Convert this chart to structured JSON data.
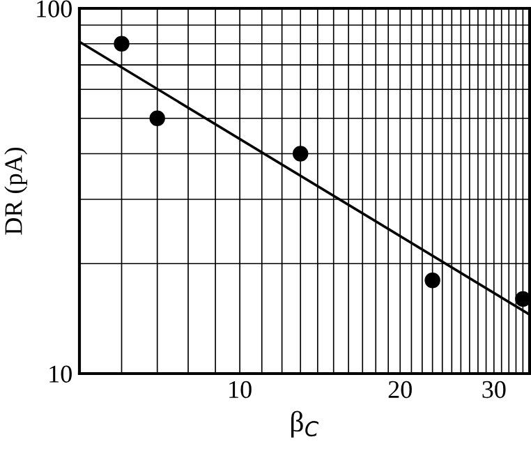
{
  "chart_data": {
    "type": "scatter",
    "xlabel": "β$_{C}$",
    "ylabel": "DR (pA)",
    "log": "xy",
    "grid": true,
    "xlim": [
      5,
      35
    ],
    "ylim": [
      10,
      100
    ],
    "xticks": [
      {
        "value": 6,
        "label": null
      },
      {
        "value": 7,
        "label": null
      },
      {
        "value": 8,
        "label": null
      },
      {
        "value": 9,
        "label": null
      },
      10,
      {
        "value": 11,
        "label": null
      },
      {
        "value": 12,
        "label": null
      },
      {
        "value": 13,
        "label": null
      },
      {
        "value": 14,
        "label": null
      },
      {
        "value": 15,
        "label": null
      },
      {
        "value": 16,
        "label": null
      },
      {
        "value": 17,
        "label": null
      },
      {
        "value": 18,
        "label": null
      },
      {
        "value": 19,
        "label": null
      },
      20,
      {
        "value": 21,
        "label": null
      },
      {
        "value": 22,
        "label": null
      },
      {
        "value": 23,
        "label": null
      },
      {
        "value": 24,
        "label": null
      },
      {
        "value": 25,
        "label": null
      },
      {
        "value": 26,
        "label": null
      },
      {
        "value": 27,
        "label": null
      },
      {
        "value": 28,
        "label": null
      },
      {
        "value": 29,
        "label": null
      },
      30,
      {
        "value": 31,
        "label": null
      },
      {
        "value": 32,
        "label": null
      },
      {
        "value": 33,
        "label": null
      },
      {
        "value": 34,
        "label": null
      }
    ],
    "yticks": [
      10,
      {
        "value": 20,
        "label": null
      },
      {
        "value": 30,
        "label": null
      },
      {
        "value": 40,
        "label": null
      },
      {
        "value": 50,
        "label": null
      },
      {
        "value": 60,
        "label": null
      },
      {
        "value": 70,
        "label": null
      },
      {
        "value": 80,
        "label": null
      },
      {
        "value": 90,
        "label": null
      },
      100
    ],
    "series": [
      {
        "color": "#000000",
        "marker": "circle",
        "x": [
          6,
          7,
          13,
          23,
          34
        ],
        "values": [
          80,
          50,
          40,
          18,
          16
        ]
      },
      {
        "type": "line",
        "color": "#000000",
        "marker": "none",
        "x": [
          5,
          35
        ],
        "values": [
          81,
          14.5
        ]
      }
    ]
  }
}
